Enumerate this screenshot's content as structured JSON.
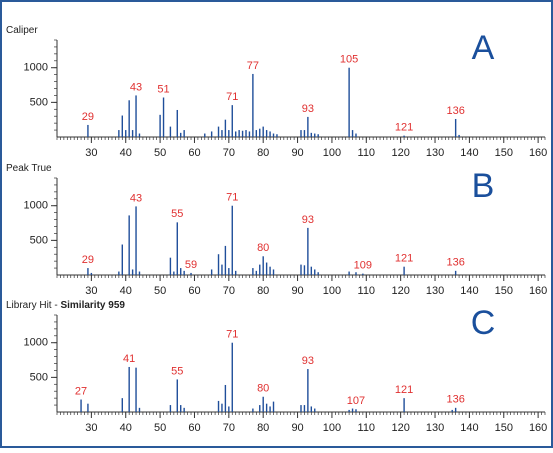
{
  "chart_data": [
    {
      "type": "stem",
      "title": "Caliper",
      "panel_label": "A",
      "x": [
        29,
        38,
        39,
        40,
        41,
        42,
        43,
        44,
        50,
        51,
        53,
        55,
        56,
        57,
        63,
        65,
        67,
        68,
        69,
        70,
        71,
        72,
        73,
        74,
        75,
        76,
        77,
        78,
        79,
        80,
        81,
        82,
        83,
        84,
        91,
        92,
        93,
        94,
        95,
        96,
        105,
        106,
        107,
        121,
        136,
        137
      ],
      "values": [
        174,
        100,
        310,
        100,
        530,
        100,
        600,
        50,
        320,
        570,
        150,
        390,
        60,
        100,
        50,
        80,
        150,
        100,
        250,
        100,
        460,
        80,
        100,
        90,
        100,
        80,
        910,
        100,
        120,
        150,
        100,
        80,
        50,
        40,
        100,
        100,
        290,
        60,
        50,
        40,
        1000,
        100,
        50,
        20,
        260,
        30
      ],
      "annotations": [
        29,
        43,
        51,
        71,
        77,
        93,
        105,
        121,
        136
      ],
      "color": "#1f4e9a",
      "annotation_color": "#e03030",
      "panel_label_color": "#1a4f9c",
      "xlim": [
        20,
        162
      ],
      "xticks": [
        30,
        40,
        50,
        60,
        70,
        80,
        90,
        100,
        110,
        120,
        130,
        140,
        150,
        160
      ],
      "ylim": [
        0,
        1400
      ],
      "yticks": [
        500,
        1000
      ]
    },
    {
      "type": "stem",
      "title": "Peak True",
      "panel_label": "B",
      "x": [
        29,
        30,
        38,
        39,
        41,
        42,
        43,
        44,
        53,
        54,
        55,
        56,
        57,
        59,
        65,
        67,
        68,
        69,
        70,
        71,
        72,
        77,
        78,
        79,
        80,
        81,
        82,
        83,
        91,
        92,
        93,
        94,
        95,
        96,
        105,
        107,
        109,
        121,
        136
      ],
      "values": [
        100,
        30,
        50,
        440,
        860,
        80,
        990,
        50,
        250,
        50,
        760,
        100,
        60,
        30,
        80,
        300,
        150,
        420,
        100,
        1000,
        60,
        100,
        60,
        150,
        270,
        180,
        120,
        80,
        150,
        140,
        680,
        120,
        80,
        40,
        50,
        40,
        20,
        120,
        60
      ],
      "annotations": [
        29,
        43,
        55,
        59,
        71,
        80,
        93,
        109,
        121,
        136
      ],
      "color": "#1f4e9a",
      "annotation_color": "#e03030",
      "panel_label_color": "#1a4f9c",
      "xlim": [
        20,
        162
      ],
      "xticks": [
        30,
        40,
        50,
        60,
        70,
        80,
        90,
        100,
        110,
        120,
        130,
        140,
        150,
        160
      ],
      "ylim": [
        0,
        1400
      ],
      "yticks": [
        500,
        1000
      ]
    },
    {
      "type": "stem",
      "title": "Library Hit - ",
      "title_emphasis": "Similarity 959",
      "panel_label": "C",
      "x": [
        27,
        29,
        39,
        41,
        43,
        44,
        53,
        55,
        56,
        57,
        67,
        68,
        69,
        70,
        71,
        77,
        79,
        80,
        81,
        82,
        83,
        91,
        92,
        93,
        94,
        95,
        105,
        106,
        107,
        121,
        135,
        136
      ],
      "values": [
        180,
        120,
        200,
        650,
        640,
        60,
        100,
        470,
        100,
        60,
        160,
        120,
        390,
        80,
        1000,
        50,
        100,
        220,
        120,
        80,
        150,
        100,
        100,
        620,
        80,
        50,
        30,
        50,
        40,
        200,
        30,
        60
      ],
      "annotations": [
        27,
        41,
        55,
        71,
        80,
        93,
        107,
        121,
        136
      ],
      "color": "#1f4e9a",
      "annotation_color": "#e03030",
      "panel_label_color": "#1a4f9c",
      "xlim": [
        20,
        162
      ],
      "xticks": [
        30,
        40,
        50,
        60,
        70,
        80,
        90,
        100,
        110,
        120,
        130,
        140,
        150,
        160
      ],
      "ylim": [
        0,
        1400
      ],
      "yticks": [
        500,
        1000
      ]
    }
  ]
}
